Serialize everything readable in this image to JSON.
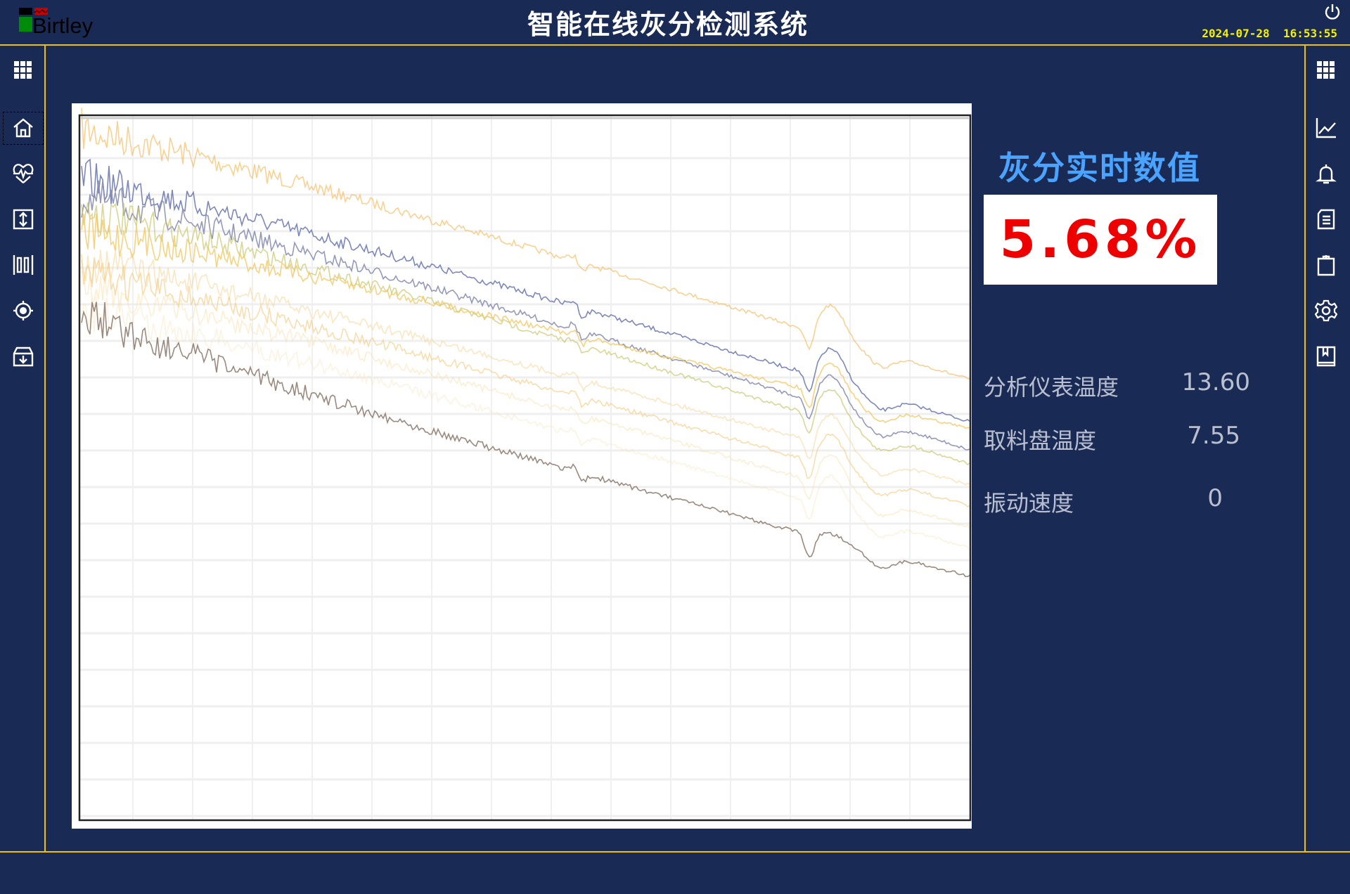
{
  "header": {
    "logo_text": "Birtley",
    "title": "智能在线灰分检测系统",
    "datetime": "2024-07-28  16:53:55",
    "power_icon": "power-icon"
  },
  "left_sidebar": {
    "items": [
      {
        "icon": "grid-menu-icon"
      },
      {
        "icon": "home-icon"
      },
      {
        "icon": "heart-pulse-icon"
      },
      {
        "icon": "vertical-resize-icon"
      },
      {
        "icon": "barcode-icon"
      },
      {
        "icon": "target-icon"
      },
      {
        "icon": "archive-download-icon"
      }
    ]
  },
  "right_sidebar": {
    "items": [
      {
        "icon": "grid-menu-icon"
      },
      {
        "icon": "line-chart-icon"
      },
      {
        "icon": "bell-icon"
      },
      {
        "icon": "document-icon"
      },
      {
        "icon": "clipboard-icon"
      },
      {
        "icon": "gear-icon"
      },
      {
        "icon": "book-icon"
      }
    ]
  },
  "realtime": {
    "title": "灰分实时数值",
    "value": "5.68%"
  },
  "metrics": [
    {
      "label": "分析仪表温度",
      "value": "13.60"
    },
    {
      "label": "取料盘温度",
      "value": "7.55"
    },
    {
      "label": "振动速度",
      "value": "0"
    }
  ],
  "colors": {
    "background": "#192a54",
    "accent_line": "#f0c000",
    "title_blue": "#4aa3ff",
    "value_red": "#ee0000",
    "clock_yellow": "#f4f000",
    "series": [
      "#f5b44a",
      "#6f7bb2",
      "#8a8fb0",
      "#c9c66a",
      "#f3c860",
      "#f6d08a",
      "#f4c878",
      "#f8dca0",
      "#f8e2b4",
      "#8f7d70"
    ]
  }
}
